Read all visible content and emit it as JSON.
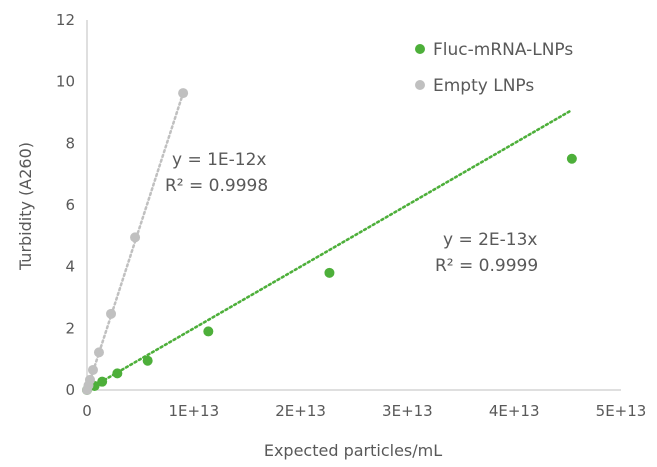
{
  "chart_data": {
    "type": "scatter",
    "title": "",
    "xlabel": "Expected particles/mL",
    "ylabel": "Turbidity (A260)",
    "xlim": [
      0,
      50000000000000.0
    ],
    "ylim": [
      0,
      12
    ],
    "x_ticks": [
      0,
      10000000000000.0,
      20000000000000.0,
      30000000000000.0,
      40000000000000.0,
      50000000000000.0
    ],
    "x_tick_labels": [
      "0",
      "1E+13",
      "2E+13",
      "3E+13",
      "4E+13",
      "5E+13"
    ],
    "y_ticks": [
      0,
      2,
      4,
      6,
      8,
      10,
      12
    ],
    "y_tick_labels": [
      "0",
      "2",
      "4",
      "6",
      "8",
      "10",
      "12"
    ],
    "grid": false,
    "legend_position": "top-right",
    "series": [
      {
        "name": "Fluc-mRNA-LNPs",
        "color": "#4daf3a",
        "x": [
          0,
          710000000000.0,
          1420000000000.0,
          2840000000000.0,
          5680000000000.0,
          11360000000000.0,
          22700000000000.0,
          45400000000000.0
        ],
        "y": [
          0,
          0.13,
          0.27,
          0.54,
          0.95,
          1.9,
          3.8,
          7.5
        ],
        "trendline": {
          "slope": 2e-13,
          "equation": "y = 2E-13x",
          "r2": "R² = 0.9999"
        }
      },
      {
        "name": "Empty LNPs",
        "color": "#c0c0c0",
        "x": [
          0,
          140000000000.0,
          280000000000.0,
          560000000000.0,
          1120000000000.0,
          2250000000000.0,
          4500000000000.0,
          9000000000000.0
        ],
        "y": [
          0,
          0.15,
          0.33,
          0.65,
          1.22,
          2.47,
          4.95,
          9.63
        ],
        "trendline": {
          "slope": 1.07e-12,
          "equation": "y = 1E-12x",
          "r2": "R² = 0.9998"
        }
      }
    ]
  }
}
